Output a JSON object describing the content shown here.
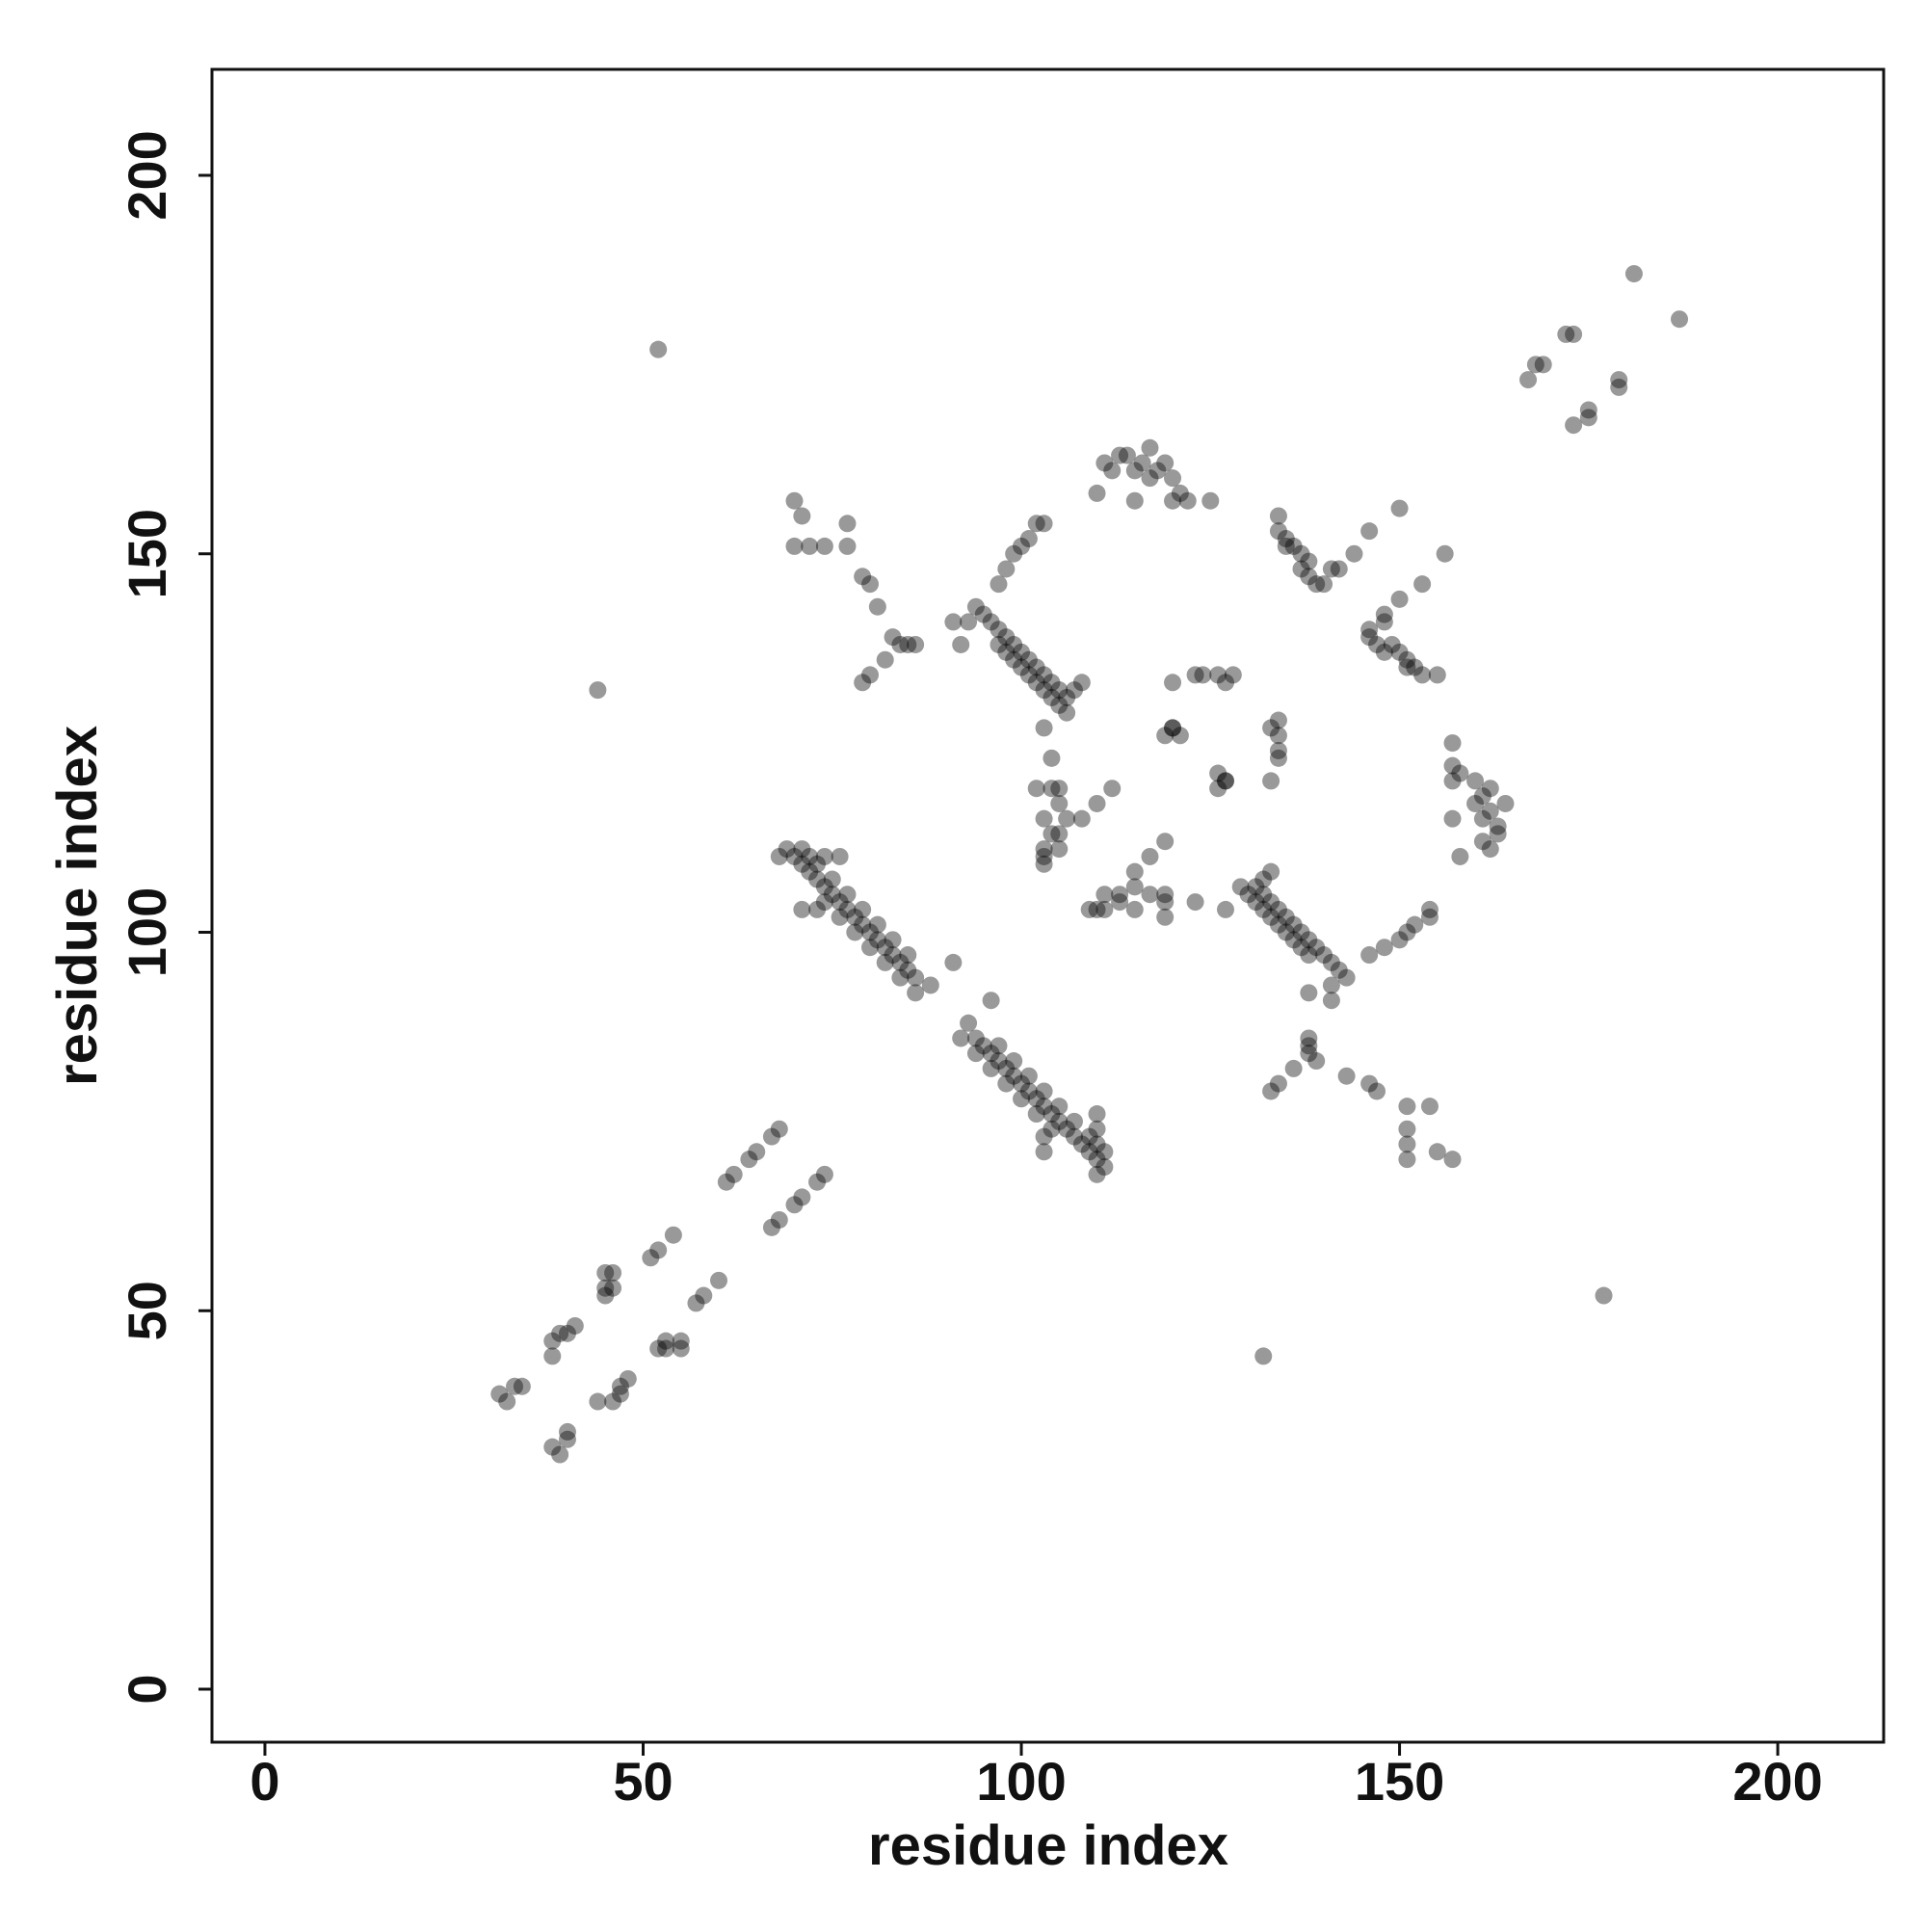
{
  "chart_data": {
    "type": "scatter",
    "xlabel": "residue index",
    "ylabel": "residue index",
    "xlim": [
      -7,
      214
    ],
    "ylim": [
      -7,
      214
    ],
    "xticks": [
      0,
      50,
      100,
      150,
      200
    ],
    "yticks": [
      0,
      50,
      100,
      150,
      200
    ],
    "grid": false,
    "color": "#000000",
    "opacity": 0.4,
    "x": [
      31,
      32,
      33,
      34,
      38,
      38,
      39,
      40,
      41,
      45,
      45,
      45,
      46,
      46,
      51,
      52,
      54,
      61,
      62,
      64,
      65,
      67,
      68,
      44,
      52,
      167,
      168,
      169,
      172,
      173,
      181,
      39,
      38,
      40,
      40,
      44,
      46,
      47,
      47,
      48,
      52,
      53,
      55,
      55,
      53,
      57,
      58,
      60,
      67,
      68,
      70,
      71,
      73,
      74,
      132,
      177,
      173,
      175,
      175,
      179,
      179,
      187,
      69,
      70,
      71,
      72,
      73,
      74,
      75,
      76,
      77,
      78,
      79,
      80,
      81,
      82,
      83,
      84,
      85,
      86,
      71,
      73,
      75,
      77,
      79,
      81,
      83,
      85,
      74,
      76,
      78,
      80,
      82,
      84,
      86,
      68,
      72,
      74,
      76,
      71,
      73,
      88,
      91,
      111,
      110,
      109,
      108,
      107,
      106,
      105,
      104,
      103,
      102,
      101,
      100,
      99,
      98,
      97,
      96,
      95,
      94,
      111,
      109,
      107,
      105,
      103,
      101,
      99,
      97,
      104,
      102,
      100,
      98,
      96,
      94,
      92,
      110,
      110,
      110,
      110,
      103,
      103,
      93,
      96,
      94,
      95,
      96,
      97,
      98,
      99,
      100,
      101,
      102,
      103,
      104,
      105,
      106,
      97,
      98,
      99,
      100,
      101,
      102,
      103,
      97,
      98,
      99,
      100,
      101,
      102,
      103,
      104,
      105,
      106,
      91,
      93,
      92,
      103,
      104,
      102,
      104,
      103,
      104,
      103,
      107,
      108,
      143,
      142,
      141,
      140,
      139,
      138,
      137,
      136,
      135,
      134,
      133,
      132,
      131,
      146,
      148,
      150,
      151,
      152,
      154,
      154,
      138,
      137,
      136,
      135,
      134,
      133,
      132,
      131,
      130,
      129,
      141,
      141,
      138,
      127,
      123,
      119,
      119,
      115,
      113,
      111,
      132,
      133,
      134,
      134,
      135,
      136,
      137,
      137,
      138,
      139,
      140,
      141,
      142,
      144,
      146,
      150,
      135,
      138,
      155,
      153,
      152,
      151,
      150,
      148,
      147,
      146,
      146,
      148,
      148,
      150,
      153,
      156,
      151,
      149,
      111,
      112,
      113,
      114,
      115,
      116,
      117,
      118,
      119,
      120,
      121,
      122,
      110,
      115,
      125,
      117,
      120,
      162,
      161,
      163,
      163,
      161,
      162,
      160,
      161,
      162,
      160,
      158,
      157,
      158,
      157,
      157,
      164,
      157,
      105,
      105,
      105,
      106,
      108,
      110,
      112,
      103,
      109,
      111,
      119,
      117,
      113,
      115,
      115,
      117,
      119,
      110,
      103,
      105,
      120,
      120,
      121,
      123,
      124,
      126,
      127,
      128,
      126,
      127,
      133,
      127,
      126,
      134,
      134,
      134,
      133,
      134,
      119,
      120,
      70,
      71,
      70,
      72,
      74,
      77,
      77,
      79,
      80,
      81,
      83,
      84,
      85,
      86,
      79,
      80,
      82,
      157,
      155,
      151,
      151,
      151,
      154,
      151,
      147,
      146,
      143,
      139,
      138,
      138,
      138,
      133,
      134,
      136
    ],
    "values": [
      39,
      38,
      40,
      40,
      44,
      46,
      47,
      47,
      48,
      52,
      53,
      55,
      55,
      53,
      57,
      58,
      60,
      67,
      68,
      70,
      71,
      73,
      74,
      132,
      177,
      173,
      175,
      175,
      179,
      179,
      187,
      31,
      32,
      33,
      34,
      38,
      38,
      39,
      40,
      41,
      45,
      45,
      45,
      46,
      46,
      51,
      52,
      54,
      61,
      62,
      64,
      65,
      67,
      68,
      44,
      52,
      167,
      168,
      169,
      172,
      173,
      181,
      111,
      110,
      109,
      108,
      107,
      106,
      105,
      104,
      103,
      102,
      101,
      100,
      99,
      98,
      97,
      96,
      95,
      94,
      111,
      109,
      107,
      105,
      103,
      101,
      99,
      97,
      104,
      102,
      100,
      98,
      96,
      94,
      92,
      110,
      110,
      110,
      110,
      103,
      103,
      93,
      96,
      69,
      70,
      71,
      72,
      73,
      74,
      75,
      76,
      77,
      78,
      79,
      80,
      81,
      82,
      83,
      84,
      85,
      86,
      71,
      73,
      75,
      77,
      79,
      81,
      83,
      85,
      74,
      76,
      78,
      80,
      82,
      84,
      86,
      68,
      72,
      74,
      76,
      71,
      73,
      88,
      91,
      143,
      142,
      141,
      140,
      139,
      138,
      137,
      136,
      135,
      134,
      133,
      132,
      131,
      146,
      148,
      150,
      151,
      152,
      154,
      154,
      138,
      137,
      136,
      135,
      134,
      133,
      132,
      131,
      130,
      129,
      141,
      141,
      138,
      127,
      123,
      119,
      119,
      115,
      113,
      111,
      132,
      133,
      94,
      95,
      96,
      97,
      98,
      99,
      100,
      101,
      102,
      103,
      104,
      105,
      106,
      97,
      98,
      99,
      100,
      101,
      102,
      103,
      97,
      98,
      99,
      100,
      101,
      102,
      103,
      104,
      105,
      106,
      91,
      93,
      92,
      103,
      104,
      102,
      104,
      103,
      104,
      103,
      107,
      108,
      155,
      153,
      152,
      151,
      150,
      148,
      147,
      146,
      146,
      148,
      148,
      150,
      153,
      156,
      151,
      149,
      134,
      134,
      135,
      136,
      137,
      137,
      138,
      139,
      140,
      141,
      142,
      144,
      146,
      150,
      135,
      138,
      162,
      161,
      163,
      163,
      161,
      162,
      160,
      161,
      162,
      160,
      158,
      157,
      158,
      157,
      157,
      164,
      157,
      111,
      112,
      113,
      114,
      115,
      116,
      117,
      118,
      119,
      120,
      121,
      122,
      110,
      115,
      125,
      117,
      120,
      119,
      117,
      113,
      115,
      115,
      117,
      119,
      110,
      103,
      105,
      105,
      105,
      105,
      106,
      108,
      110,
      112,
      103,
      109,
      111,
      133,
      127,
      126,
      134,
      134,
      134,
      133,
      134,
      119,
      120,
      120,
      120,
      121,
      123,
      124,
      126,
      127,
      128,
      126,
      127,
      157,
      155,
      151,
      151,
      151,
      154,
      151,
      147,
      146,
      143,
      139,
      138,
      138,
      138,
      133,
      134,
      136,
      70,
      71,
      70,
      72,
      74,
      77,
      77,
      79,
      80,
      81,
      83,
      84,
      85,
      86,
      79,
      80,
      82
    ]
  }
}
